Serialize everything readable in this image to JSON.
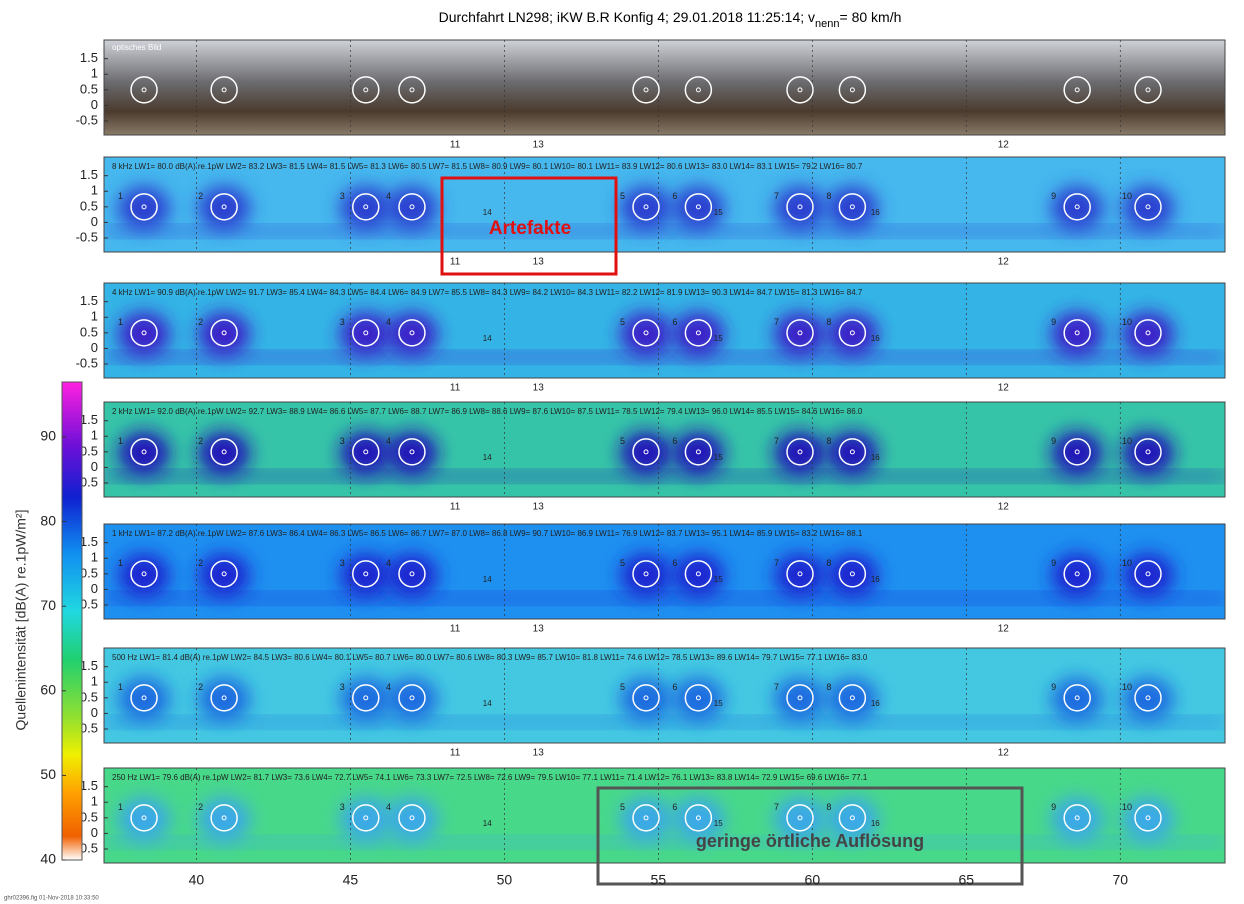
{
  "chart_data": {
    "type": "acoustic-map",
    "title": "Durchfahrt LN298; iKW B.R Konfig 4; 29.01.2018 11:25:14; v",
    "title_sub": "nenn",
    "title_end": "= 80 km/h",
    "xlim": [
      37,
      73.4
    ],
    "xticks": [
      40,
      45,
      50,
      55,
      60,
      65,
      70
    ],
    "ylim": [
      -0.95,
      2.1
    ],
    "yticks": [
      -0.5,
      0,
      0.5,
      1,
      1.5
    ],
    "colorbar": {
      "label": "Quellenintensität [dB(A) re.1pW/m²]",
      "lim": [
        40,
        96.5
      ],
      "ticks": [
        40,
        50,
        60,
        70,
        80,
        90
      ]
    },
    "sources": {
      "labels": [
        "1",
        "2",
        "3",
        "4",
        "5",
        "6",
        "7",
        "8",
        "9",
        "10"
      ],
      "x": [
        38.3,
        40.9,
        45.5,
        47.0,
        54.6,
        56.3,
        59.6,
        61.3,
        68.6,
        70.9
      ]
    },
    "axle_labels": {
      "labels": [
        "11",
        "13",
        "12"
      ],
      "x": [
        48.4,
        51.1,
        66.2
      ]
    },
    "inner_labels": {
      "labels": [
        "14",
        "15",
        "16"
      ],
      "x": [
        49.3,
        56.8,
        61.9
      ]
    },
    "photo_label": "optisches Bild",
    "panels": [
      {
        "header": "8 kHz LW1= 80.0 dB(A) re.1pW LW2= 83.2 LW3= 81.5 LW4= 81.5 LW5= 81.3 LW6= 80.5 LW7= 81.5 LW8= 80.9 LW9= 80.1 LW10= 80.1 LW11= 83.9 LW12= 80.6 LW13= 83.0 LW14= 83.1 LW15= 79.2 LW16= 80.7",
        "colors": [
          "#46b8ee",
          "#2a3fd0"
        ]
      },
      {
        "header": "4 kHz LW1= 90.9 dB(A) re.1pW LW2= 91.7 LW3= 85.4 LW4= 84.3 LW5= 84.4 LW6= 84.9 LW7= 85.5 LW8= 84.3 LW9= 84.2 LW10= 84.3 LW11= 82.2 LW12= 81.9 LW13= 90.3 LW14= 84.7 LW15= 81.3 LW16= 84.7",
        "colors": [
          "#34b4e6",
          "#3a20c8"
        ]
      },
      {
        "header": "2 kHz LW1= 92.0 dB(A) re.1pW LW2= 92.7 LW3= 88.9 LW4= 86.6 LW5= 87.7 LW6= 88.7 LW7= 86.9 LW8= 88.6 LW9= 87.6 LW10= 87.5 LW11= 78.5 LW12= 79.4 LW13= 96.0 LW14= 85.5 LW15= 84.6 LW16= 86.0",
        "colors": [
          "#36c4a8",
          "#2418b8"
        ]
      },
      {
        "header": "1 kHz LW1= 87.2 dB(A) re.1pW LW2= 87.6 LW3= 86.4 LW4= 86.3 LW5= 86.5 LW6= 86.7 LW7= 87.0 LW8= 86.8 LW9= 90.7 LW10= 86.9 LW11= 76.9 LW12= 83.7 LW13= 95.1 LW14= 85.9 LW15= 83.2 LW16= 88.1",
        "colors": [
          "#1e90f0",
          "#1a26d0"
        ]
      },
      {
        "header": "500 Hz LW1= 81.4 dB(A) re.1pW LW2= 84.5 LW3= 80.6 LW4= 80.1 LW5= 80.7 LW6= 80.0 LW7= 80.6 LW8= 80.3 LW9= 85.7 LW10= 81.8 LW11= 74.6 LW12= 78.5 LW13= 89.6 LW14= 79.7 LW15= 77.1 LW16= 83.0",
        "colors": [
          "#44c8e2",
          "#1a6ce0"
        ]
      },
      {
        "header": "250 Hz LW1= 79.6 dB(A) re.1pW LW2= 81.7 LW3= 73.6 LW4= 72.7 LW5= 74.1 LW6= 73.3 LW7= 72.5 LW8= 72.6 LW9= 79.5 LW10= 77.1 LW11= 71.4 LW12= 76.1 LW13= 83.8 LW14= 72.9 LW15= 69.6 LW16= 77.1",
        "colors": [
          "#48d88a",
          "#3aa8e8"
        ]
      }
    ],
    "annotations": [
      "Artefakte",
      "geringe örtliche Auflösung"
    ],
    "footer": "ghr02396.fig  01-Nov-2018 10:33:50"
  }
}
